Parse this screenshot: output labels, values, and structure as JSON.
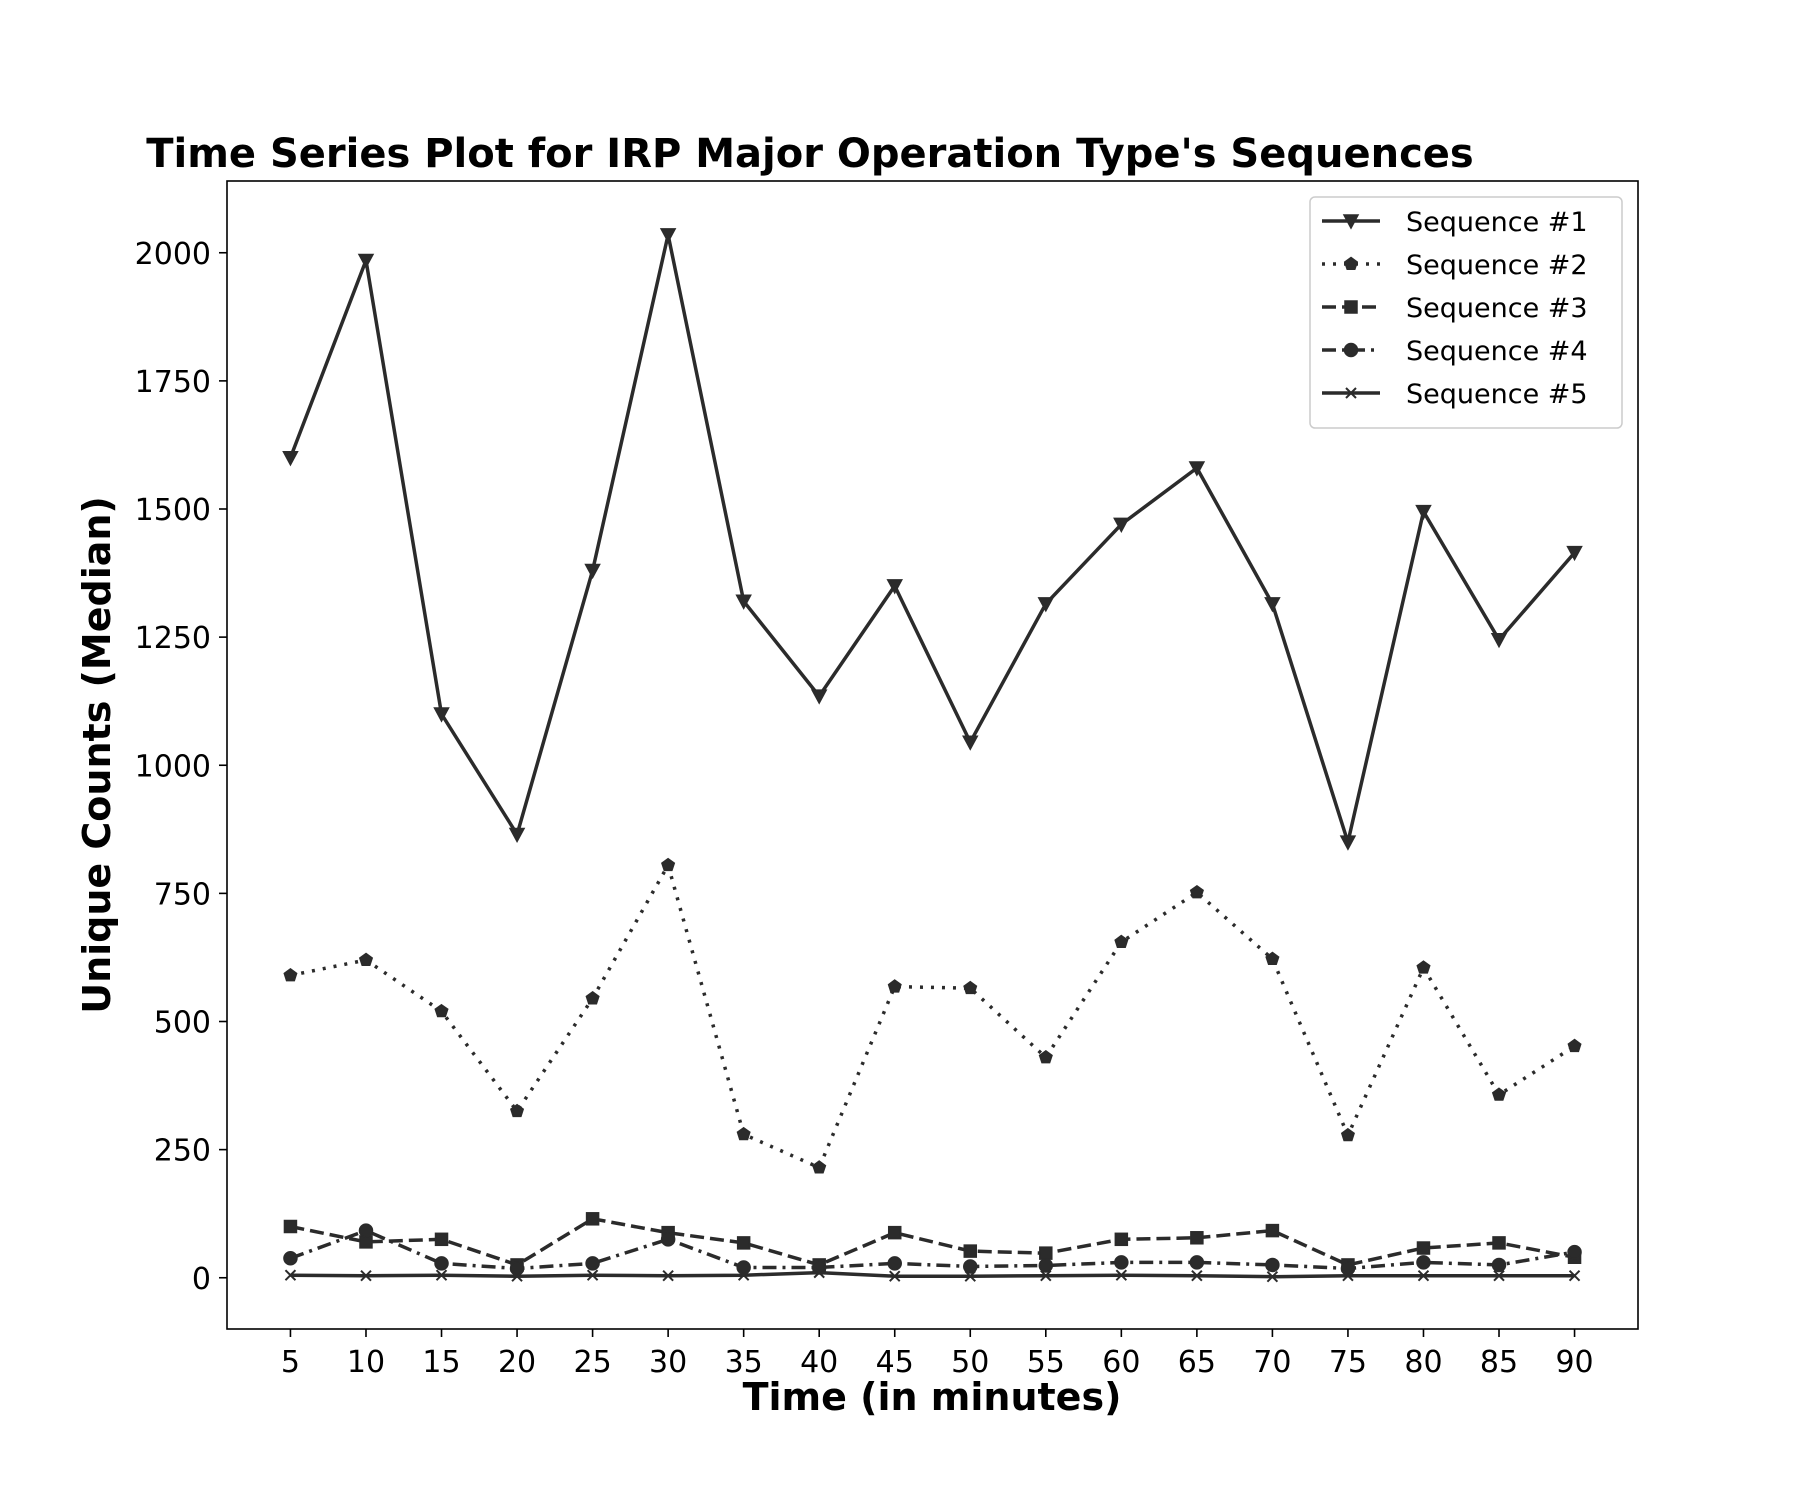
{
  "chart_data": {
    "type": "line",
    "title": "Time Series Plot for IRP Major Operation Type's Sequences",
    "xlabel": "Time (in minutes)",
    "ylabel": "Unique Counts (Median)",
    "x": [
      5,
      10,
      15,
      20,
      25,
      30,
      35,
      40,
      45,
      50,
      55,
      60,
      65,
      70,
      75,
      80,
      85,
      90
    ],
    "x_tick_labels": [
      "5",
      "10",
      "15",
      "20",
      "25",
      "30",
      "35",
      "40",
      "45",
      "50",
      "55",
      "60",
      "65",
      "70",
      "75",
      "80",
      "85",
      "90"
    ],
    "y_ticks": [
      0,
      250,
      500,
      750,
      1000,
      1250,
      1500,
      1750,
      2000
    ],
    "y_tick_labels": [
      "0",
      "250",
      "500",
      "750",
      "1000",
      "1250",
      "1500",
      "1750",
      "2000"
    ],
    "xlim": [
      0.8,
      94.2
    ],
    "ylim": [
      -100,
      2140
    ],
    "grid": false,
    "legend_position": "top-right",
    "line_color": "#2b2b2b",
    "series": [
      {
        "name": "Sequence #1",
        "marker": "triangle-down",
        "linestyle": "solid",
        "values": [
          1600,
          1985,
          1100,
          865,
          1380,
          2035,
          1320,
          1135,
          1350,
          1045,
          1315,
          1470,
          1580,
          1315,
          850,
          1495,
          1245,
          1415
        ]
      },
      {
        "name": "Sequence #2",
        "marker": "pentagon",
        "linestyle": "dotted",
        "values": [
          590,
          620,
          520,
          325,
          545,
          805,
          280,
          215,
          568,
          565,
          430,
          655,
          752,
          622,
          278,
          605,
          357,
          452
        ]
      },
      {
        "name": "Sequence #3",
        "marker": "square",
        "linestyle": "dashed",
        "values": [
          100,
          70,
          75,
          25,
          115,
          88,
          68,
          25,
          88,
          52,
          48,
          75,
          78,
          92,
          25,
          58,
          68,
          40
        ]
      },
      {
        "name": "Sequence #4",
        "marker": "circle",
        "linestyle": "dashdot",
        "values": [
          38,
          92,
          28,
          18,
          28,
          75,
          20,
          20,
          28,
          22,
          24,
          30,
          30,
          25,
          18,
          30,
          25,
          50
        ]
      },
      {
        "name": "Sequence #5",
        "marker": "x",
        "linestyle": "solid",
        "values": [
          5,
          4,
          5,
          3,
          5,
          4,
          5,
          10,
          3,
          3,
          4,
          5,
          4,
          2,
          4,
          4,
          4,
          4
        ]
      }
    ]
  }
}
